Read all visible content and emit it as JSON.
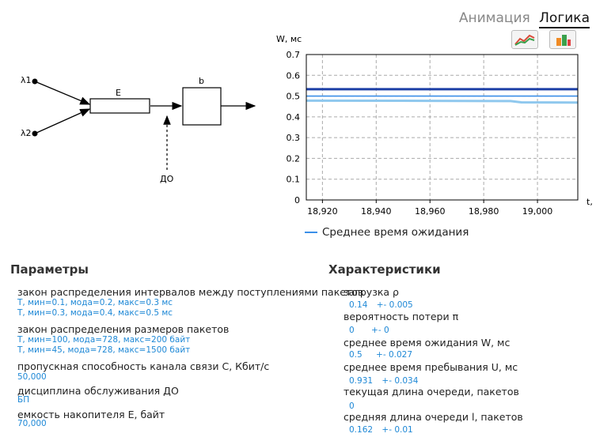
{
  "header": {
    "tab_animation": "Анимация",
    "tab_logic": "Логика",
    "buttons": [
      "line-chart-icon",
      "bar-chart-icon"
    ]
  },
  "diagram": {
    "input1": "λ1",
    "input2": "λ2",
    "buffer_label": "E",
    "server_label": "b",
    "discipline_label": "ДО"
  },
  "chart_data": {
    "type": "line",
    "ylabel": "W, мс",
    "xlabel": "t,",
    "ylim": [
      0,
      0.7
    ],
    "yticks": [
      "0",
      "0.1",
      "0.2",
      "0.3",
      "0.4",
      "0.5",
      "0.6",
      "0.7"
    ],
    "xlim": [
      18914,
      19015
    ],
    "xticks": [
      "18,920",
      "18,940",
      "18,960",
      "18,980",
      "19,000"
    ],
    "grid": true,
    "series": [
      {
        "name": "Среднее время ожидания",
        "x": [
          18914,
          19015
        ],
        "y": [
          0.5,
          0.5
        ],
        "color": "#3b8fe8"
      },
      {
        "x": [
          18914,
          19015
        ],
        "y": [
          0.533,
          0.533
        ],
        "color": "#1c3fa6"
      },
      {
        "x": [
          18914,
          18960,
          18990,
          18994,
          19015
        ],
        "y": [
          0.478,
          0.477,
          0.476,
          0.47,
          0.469
        ],
        "color": "#8fc8ee"
      }
    ],
    "legend": "bottom"
  },
  "params": {
    "title": "Параметры",
    "items": [
      {
        "label": "закон распределения интервалов между поступлениями пакетов",
        "values": [
          "Т, мин=0.1, мода=0.2, макс=0.3 мс",
          "Т, мин=0.3, мода=0.4, макс=0.5 мс"
        ]
      },
      {
        "label": "закон распределения размеров пакетов",
        "values": [
          "Т, мин=100, мода=728, макс=200 байт",
          "Т, мин=45, мода=728, макс=1500 байт"
        ]
      },
      {
        "label": "пропускная способность канала связи C, Кбит/с",
        "values": [
          "50,000"
        ]
      },
      {
        "label": "дисциплина обслуживания ДО",
        "values": [
          "БП"
        ]
      },
      {
        "label": "емкость накопителя E, байт",
        "values": [
          "70,000"
        ]
      }
    ]
  },
  "stats": {
    "title": "Характеристики",
    "items": [
      {
        "label": "загрузка ρ",
        "value": "0.14",
        "pm": "+-",
        "err": "0.005"
      },
      {
        "label": "вероятность потери π",
        "value": "0",
        "pm": "+-",
        "err": "0"
      },
      {
        "label": "среднее время ожидания W, мс",
        "value": "0.5",
        "pm": "+-",
        "err": "0.027"
      },
      {
        "label": "среднее время пребывания U, мс",
        "value": "0.931",
        "pm": "+-",
        "err": "0.034"
      },
      {
        "label": "текущая длина очереди, пакетов",
        "value": "0"
      },
      {
        "label": "средняя длина очереди l, пакетов",
        "value": "0.162",
        "pm": "+-",
        "err": "0.01"
      }
    ]
  }
}
